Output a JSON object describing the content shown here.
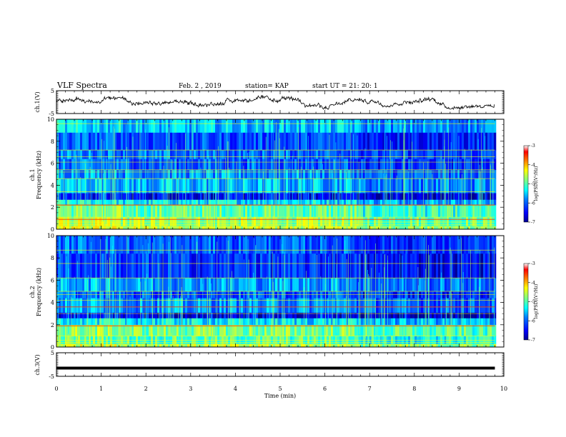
{
  "header": {
    "title": "VLF Spectra",
    "date": "Feb. 2 , 2019",
    "station": "station= KAP",
    "start_time": "start UT = 21: 20: 1"
  },
  "chart_data": [
    {
      "type": "line",
      "name": "ch1-waveform",
      "ylabel": "ch.1(V)",
      "ylim": [
        -5,
        5
      ],
      "yticks": [
        "5",
        "-5"
      ],
      "xlim": [
        0,
        10
      ],
      "x_end": 9.8,
      "trend": "noisy waveform fluctuating roughly between -3 and 3 V around 0"
    },
    {
      "type": "heatmap",
      "name": "ch1-spectrogram",
      "ylabel_top": "ch.1",
      "ylabel": "Frequency (kHz)",
      "ylim": [
        0,
        10
      ],
      "yticks": [
        "0",
        "2",
        "4",
        "6",
        "8",
        "10"
      ],
      "xlim": [
        0,
        9.8
      ],
      "colorbar": {
        "label": "log(PSD)(V²/Hz)",
        "range": [
          -7,
          -3
        ],
        "ticks": [
          "-3",
          "-4",
          "-5",
          "-6",
          "-7"
        ]
      },
      "bands": [
        {
          "from": 0.0,
          "to": 0.3,
          "level": 0.62
        },
        {
          "from": 0.3,
          "to": 1.1,
          "level": 0.58
        },
        {
          "from": 1.1,
          "to": 2.2,
          "level": 0.52
        },
        {
          "from": 2.2,
          "to": 2.7,
          "level": 0.4
        },
        {
          "from": 2.7,
          "to": 3.3,
          "level": 0.12
        },
        {
          "from": 3.3,
          "to": 4.6,
          "level": 0.34
        },
        {
          "from": 4.6,
          "to": 5.4,
          "level": 0.3
        },
        {
          "from": 5.4,
          "to": 6.4,
          "level": 0.24
        },
        {
          "from": 6.4,
          "to": 7.2,
          "level": 0.26
        },
        {
          "from": 7.2,
          "to": 8.8,
          "level": 0.22
        },
        {
          "from": 8.8,
          "to": 10.0,
          "level": 0.36
        }
      ],
      "lines_khz": [
        0.2,
        0.4,
        0.65,
        0.9,
        1.1,
        2.2,
        3.4,
        4.6,
        5.2,
        5.4,
        6.1,
        6.6,
        7.2,
        9.6
      ],
      "hot_lines_khz": [
        0.9,
        2.2
      ],
      "step_change_min": 6.7
    },
    {
      "type": "heatmap",
      "name": "ch2-spectrogram",
      "ylabel_top": "ch.2",
      "ylabel": "Frequency (kHz)",
      "ylim": [
        0,
        10
      ],
      "yticks": [
        "0",
        "2",
        "4",
        "6",
        "8",
        "10"
      ],
      "xlim": [
        0,
        9.8
      ],
      "colorbar": {
        "label": "log(PSD)(V²/Hz)",
        "range": [
          -7,
          -3
        ],
        "ticks": [
          "-3",
          "-4",
          "-5",
          "-6",
          "-7"
        ]
      },
      "bands": [
        {
          "from": 0.0,
          "to": 0.3,
          "level": 0.6
        },
        {
          "from": 0.3,
          "to": 1.0,
          "level": 0.5
        },
        {
          "from": 1.0,
          "to": 2.0,
          "level": 0.55
        },
        {
          "from": 2.0,
          "to": 2.6,
          "level": 0.4
        },
        {
          "from": 2.6,
          "to": 3.1,
          "level": 0.1
        },
        {
          "from": 3.1,
          "to": 4.4,
          "level": 0.3
        },
        {
          "from": 4.4,
          "to": 5.0,
          "level": 0.22
        },
        {
          "from": 5.0,
          "to": 6.2,
          "level": 0.32
        },
        {
          "from": 6.2,
          "to": 8.4,
          "level": 0.18
        },
        {
          "from": 8.4,
          "to": 10.0,
          "level": 0.24
        }
      ],
      "lines_khz": [
        0.2,
        0.4,
        0.6,
        1.0,
        1.9,
        3.0,
        3.6,
        4.2,
        4.7,
        5.0,
        6.2,
        7.5,
        8.7
      ],
      "hot_lines_khz": [
        1.9,
        3.6
      ],
      "step_change_min": 6.7
    },
    {
      "type": "line",
      "name": "ch3-waveform",
      "ylabel": "ch.3(V)",
      "ylim": [
        -5,
        5
      ],
      "yticks": [
        "5",
        "-5"
      ],
      "xlim": [
        0,
        10
      ],
      "x_end": 9.8,
      "constant_value": -1.5
    }
  ],
  "x_axis": {
    "label": "Time (min)",
    "ticks": [
      "0",
      "1",
      "2",
      "3",
      "4",
      "5",
      "6",
      "7",
      "8",
      "9",
      "10"
    ]
  },
  "colors": {
    "jet": [
      "#00008f",
      "#0000ff",
      "#0080ff",
      "#00ffff",
      "#80ff80",
      "#ffff00",
      "#ff8000",
      "#ff0000",
      "#800000"
    ]
  }
}
